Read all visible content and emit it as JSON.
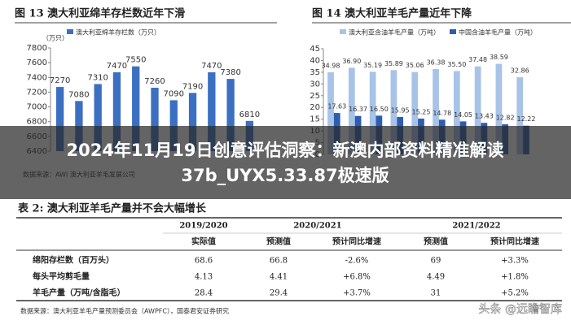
{
  "chart_data": [
    {
      "type": "bar",
      "title": "图 13 澳大利亚绵羊存栏数近年下滑",
      "y_label": "（万只）",
      "categories": [
        null,
        null,
        null,
        null,
        null,
        null,
        null,
        null,
        null,
        null,
        null
      ],
      "series": [
        {
          "name": "澳大利亚绵羊存栏数（万只）",
          "color": "#3b6fc2",
          "values": [
            7270,
            7080,
            7310,
            7470,
            7550,
            7260,
            7090,
            7190,
            7470,
            7380,
            6810
          ]
        }
      ],
      "ylim": [
        6400,
        7800
      ],
      "yticks": [
        6400,
        6600,
        6800,
        7000,
        7200,
        7400,
        7600,
        7800
      ],
      "source": "数据来源：AWI 澳大利亚羊毛发展公司"
    },
    {
      "type": "bar",
      "title": "图 14 澳大利亚羊毛产量近年下降",
      "categories": [
        null,
        null,
        null,
        null,
        null,
        null,
        null,
        null,
        null,
        null
      ],
      "series": [
        {
          "name": "澳大利亚含油羊毛产量（万吨）",
          "color": "#a8c3e8",
          "values": [
            34.98,
            36.9,
            35.19,
            35.89,
            35.06,
            36.38,
            35.5,
            37.48,
            38.59,
            32.86
          ],
          "value_labels": [
            "34.98",
            "36.90",
            "35.19",
            "35.89",
            "35.06",
            "36.38",
            "35.50",
            "37.48",
            "38.59",
            "32.86"
          ]
        },
        {
          "name": "中国含油羊毛产量（万吨）",
          "color": "#2d5db0",
          "values": [
            17.63,
            16.37,
            16.5,
            15.95,
            15.25,
            14.78,
            14.05,
            13.43,
            12.82,
            12.22
          ],
          "value_labels": [
            "17.63",
            "16.37",
            "16.50",
            "15.95",
            "15.25",
            "14.78",
            "14.05",
            "13.43",
            "12.82",
            "12.22"
          ]
        }
      ],
      "ylim": [
        0,
        45
      ],
      "yticks": [
        0,
        5,
        10,
        15,
        20,
        25,
        30,
        35,
        40,
        45
      ]
    }
  ],
  "banner": {
    "line1": "2024年11月19日创意评估洞察：新澳内部资料精准解读",
    "line2": "37b_UYX5.33.87极速版"
  },
  "table": {
    "title": "表 2: 澳大利亚羊毛产量并不会大幅增长",
    "years": [
      "2019/2020",
      "2020/2021",
      "2021/2022"
    ],
    "subheaders": [
      "实际值",
      "预测值",
      "预计同比增速",
      "预测值",
      "预计同比增速"
    ],
    "rows": [
      [
        "绵阳存栏数（百万头）",
        "68.6",
        "66.8",
        "-2.6%",
        "69",
        "+3.3%"
      ],
      [
        "每头平均剪毛量",
        "4.13",
        "4.41",
        "+6.8%",
        "4.49",
        "+1.8%"
      ],
      [
        "羊毛产量（万吨/含脂毛）",
        "28.4",
        "29.4",
        "+3.7%",
        "31",
        "+5.2%"
      ]
    ],
    "source": "数据来源：澳大利亚羊毛产量预测委员会（AWPFC），国泰君安证券研究"
  },
  "watermark": "头条 @远瞻智库"
}
